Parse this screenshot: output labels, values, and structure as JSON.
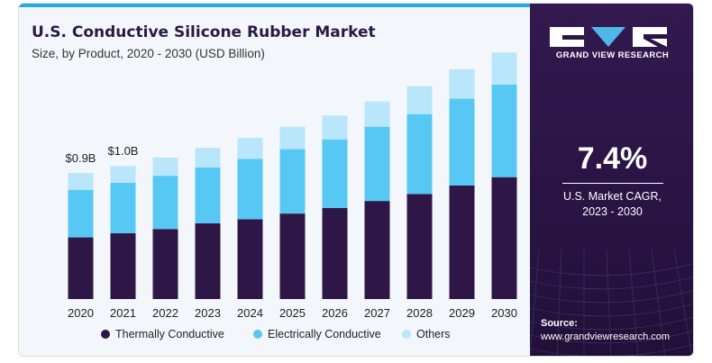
{
  "header": {
    "title": "U.S. Conductive Silicone Rubber Market",
    "subtitle": "Size, by Product, 2020 - 2030 (USD Billion)"
  },
  "brand": {
    "name": "GRAND VIEW RESEARCH",
    "logo_icon": "gvr-logo-icon"
  },
  "cagr": {
    "value": "7.4%",
    "label_line1": "U.S. Market CAGR,",
    "label_line2": "2023 - 2030"
  },
  "source": {
    "label": "Source:",
    "url": "www.grandviewresearch.com"
  },
  "colors": {
    "thermally": "#2e1746",
    "electrically": "#57c8f4",
    "others": "#b9e6fb",
    "panel": "#2a1444",
    "accent": "#2aa8e0"
  },
  "chart_data": {
    "type": "bar",
    "stacked": true,
    "categories": [
      "2020",
      "2021",
      "2022",
      "2023",
      "2024",
      "2025",
      "2026",
      "2027",
      "2028",
      "2029",
      "2030"
    ],
    "series": [
      {
        "name": "Thermally Conductive",
        "values": [
          0.44,
          0.47,
          0.5,
          0.54,
          0.57,
          0.61,
          0.65,
          0.7,
          0.75,
          0.81,
          0.87
        ]
      },
      {
        "name": "Electrically Conductive",
        "values": [
          0.34,
          0.36,
          0.38,
          0.4,
          0.43,
          0.46,
          0.49,
          0.53,
          0.57,
          0.62,
          0.66
        ]
      },
      {
        "name": "Others",
        "values": [
          0.12,
          0.12,
          0.13,
          0.14,
          0.15,
          0.16,
          0.17,
          0.18,
          0.2,
          0.21,
          0.23
        ]
      }
    ],
    "data_labels": [
      {
        "category": "2020",
        "text": "$0.9B"
      },
      {
        "category": "2021",
        "text": "$1.0B"
      }
    ],
    "ylim": [
      0,
      1.8
    ],
    "grid": false,
    "legend_position": "bottom"
  }
}
